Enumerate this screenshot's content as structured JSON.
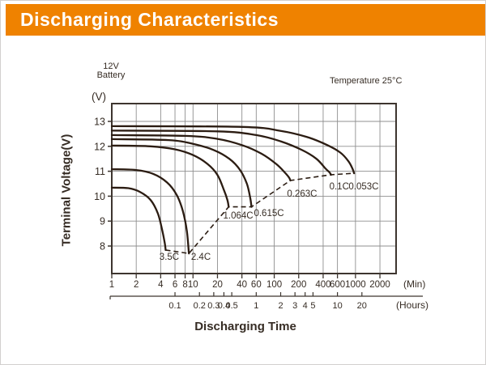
{
  "page": {
    "bg": "#ffffff",
    "border_color": "#d2d0ce"
  },
  "header": {
    "title": "Discharging Characteristics",
    "bg_color": "#EF8200",
    "text_color": "#ffffff"
  },
  "annotations": {
    "battery_line1": "12V",
    "battery_line2": "Battery",
    "y_unit": "(V)",
    "temperature": "Temperature 25°C",
    "x_title": "Discharging Time"
  },
  "chart_data": {
    "type": "line",
    "title": "Discharging Characteristics",
    "xlabel": "Discharging Time",
    "ylabel": "Terminal Voltage(V)",
    "x_log": true,
    "grid": true,
    "xlim_minutes": [
      1,
      3162
    ],
    "ylim": [
      6.9,
      13.7
    ],
    "y_ticks": [
      13,
      12,
      11,
      10,
      9,
      8
    ],
    "x_ticks_minutes": {
      "values": [
        1,
        2,
        4,
        6,
        8,
        10,
        20,
        40,
        60,
        100,
        200,
        400,
        600,
        1000,
        2000
      ],
      "unit": "(Min)"
    },
    "x_ticks_hours": {
      "values": [
        0.1,
        0.2,
        0.3,
        0.4,
        0.5,
        1,
        2,
        3,
        4,
        5,
        10,
        20
      ],
      "unit": "(Hours)"
    },
    "colors": {
      "curve": "#2b1c12",
      "grid": "#8f8f8f",
      "axis": "#3d352f",
      "text": "#362c24"
    },
    "series": [
      {
        "name": "3.5C",
        "label_pos": [
          5.1,
          7.58
        ],
        "points": [
          [
            1,
            10.34
          ],
          [
            1.6,
            10.32
          ],
          [
            2.2,
            10.18
          ],
          [
            3.0,
            9.85
          ],
          [
            3.7,
            9.3
          ],
          [
            4.2,
            8.6
          ],
          [
            4.5,
            8.1
          ],
          [
            4.6,
            7.84
          ]
        ]
      },
      {
        "name": "2.4C",
        "label_pos": [
          12.5,
          7.58
        ],
        "points": [
          [
            1,
            11.08
          ],
          [
            2.0,
            11.05
          ],
          [
            3.2,
            10.9
          ],
          [
            4.8,
            10.55
          ],
          [
            6.3,
            10.05
          ],
          [
            7.5,
            9.4
          ],
          [
            8.4,
            8.6
          ],
          [
            8.9,
            7.7
          ]
        ]
      },
      {
        "name": "1.064C",
        "label_pos": [
          36,
          9.23
        ],
        "points": [
          [
            1,
            12.03
          ],
          [
            3,
            12.0
          ],
          [
            6,
            11.88
          ],
          [
            10,
            11.65
          ],
          [
            15,
            11.3
          ],
          [
            20,
            10.85
          ],
          [
            24,
            10.25
          ],
          [
            26.5,
            9.85
          ],
          [
            27.5,
            9.57
          ]
        ]
      },
      {
        "name": "0.615C",
        "label_pos": [
          86,
          9.33
        ],
        "points": [
          [
            1,
            12.29
          ],
          [
            5,
            12.25
          ],
          [
            10,
            12.1
          ],
          [
            18,
            11.85
          ],
          [
            28,
            11.5
          ],
          [
            38,
            11.05
          ],
          [
            46,
            10.5
          ],
          [
            50.5,
            9.95
          ],
          [
            52.5,
            9.57
          ]
        ]
      },
      {
        "name": "0.263C",
        "label_pos": [
          220,
          10.11
        ],
        "points": [
          [
            1,
            12.45
          ],
          [
            8,
            12.42
          ],
          [
            20,
            12.3
          ],
          [
            40,
            12.05
          ],
          [
            70,
            11.7
          ],
          [
            105,
            11.3
          ],
          [
            135,
            10.95
          ],
          [
            152,
            10.75
          ],
          [
            158,
            10.63
          ]
        ]
      },
      {
        "name": "0.1C",
        "label_pos": [
          630,
          10.4
        ],
        "points": [
          [
            1,
            12.63
          ],
          [
            20,
            12.6
          ],
          [
            60,
            12.45
          ],
          [
            120,
            12.2
          ],
          [
            220,
            11.85
          ],
          [
            330,
            11.5
          ],
          [
            430,
            11.1
          ],
          [
            480,
            10.95
          ],
          [
            500,
            10.86
          ]
        ]
      },
      {
        "name": "0.053C",
        "label_pos": [
          1260,
          10.4
        ],
        "points": [
          [
            1,
            12.81
          ],
          [
            40,
            12.78
          ],
          [
            120,
            12.62
          ],
          [
            250,
            12.38
          ],
          [
            450,
            12.05
          ],
          [
            650,
            11.75
          ],
          [
            820,
            11.4
          ],
          [
            920,
            11.1
          ],
          [
            960,
            10.92
          ]
        ]
      }
    ],
    "cutoff_dashed_line": {
      "points": [
        [
          4.6,
          7.84
        ],
        [
          8.9,
          7.7
        ],
        [
          27.5,
          9.57
        ],
        [
          52.5,
          9.57
        ],
        [
          158,
          10.63
        ],
        [
          500,
          10.86
        ],
        [
          960,
          10.92
        ]
      ]
    }
  }
}
